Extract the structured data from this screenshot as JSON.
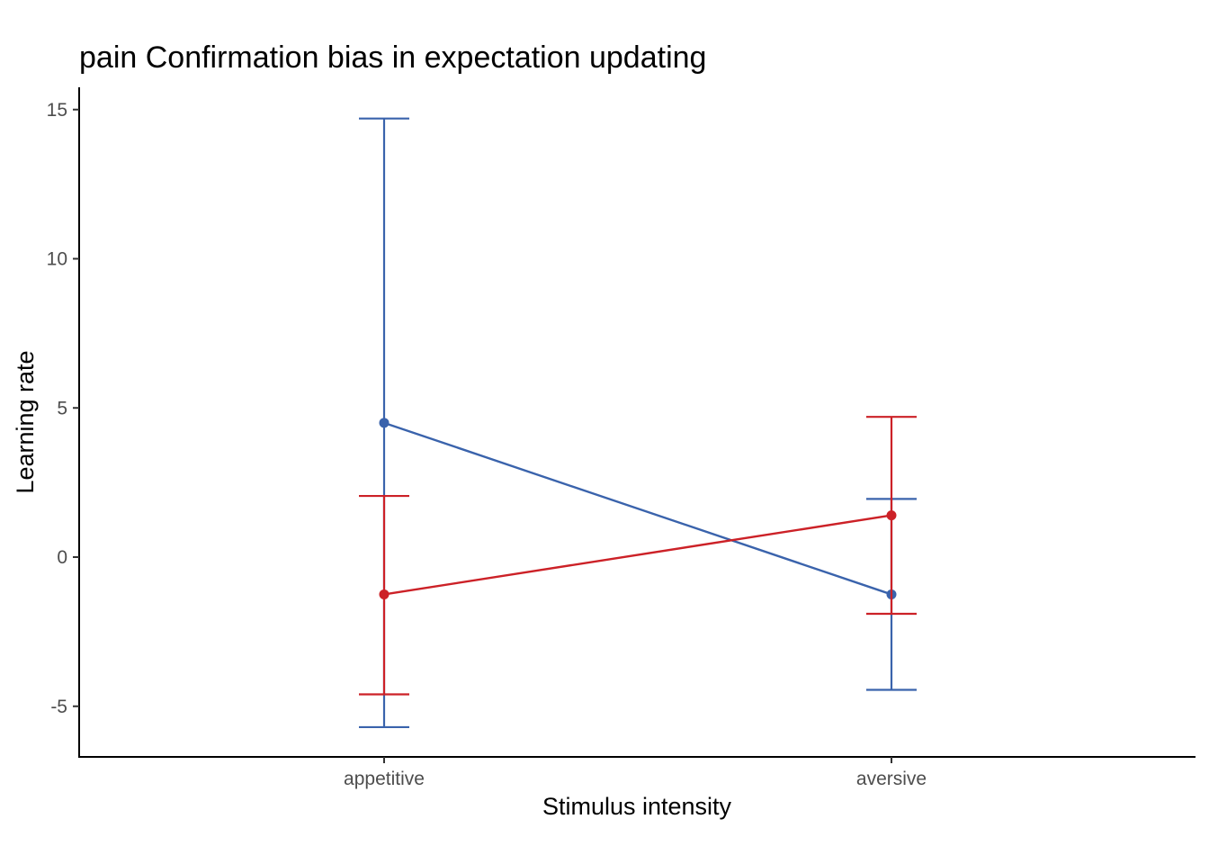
{
  "chart_data": {
    "type": "line",
    "title": "pain Confirmation bias in expectation updating",
    "xlabel": "Stimulus intensity",
    "ylabel": "Learning rate",
    "categories": [
      "appetitive",
      "aversive"
    ],
    "ylim": [
      -6.7,
      15.8
    ],
    "yticks": [
      -5,
      0,
      5,
      10,
      15
    ],
    "grid": false,
    "legend": "none",
    "series": [
      {
        "color": "#3a63ac",
        "values": [
          4.5,
          -1.25
        ],
        "lower": [
          -5.7,
          -4.45
        ],
        "upper": [
          14.7,
          1.95
        ]
      },
      {
        "color": "#cc2127",
        "values": [
          -1.25,
          1.4
        ],
        "lower": [
          -4.6,
          -1.9
        ],
        "upper": [
          2.05,
          4.7
        ]
      }
    ]
  }
}
